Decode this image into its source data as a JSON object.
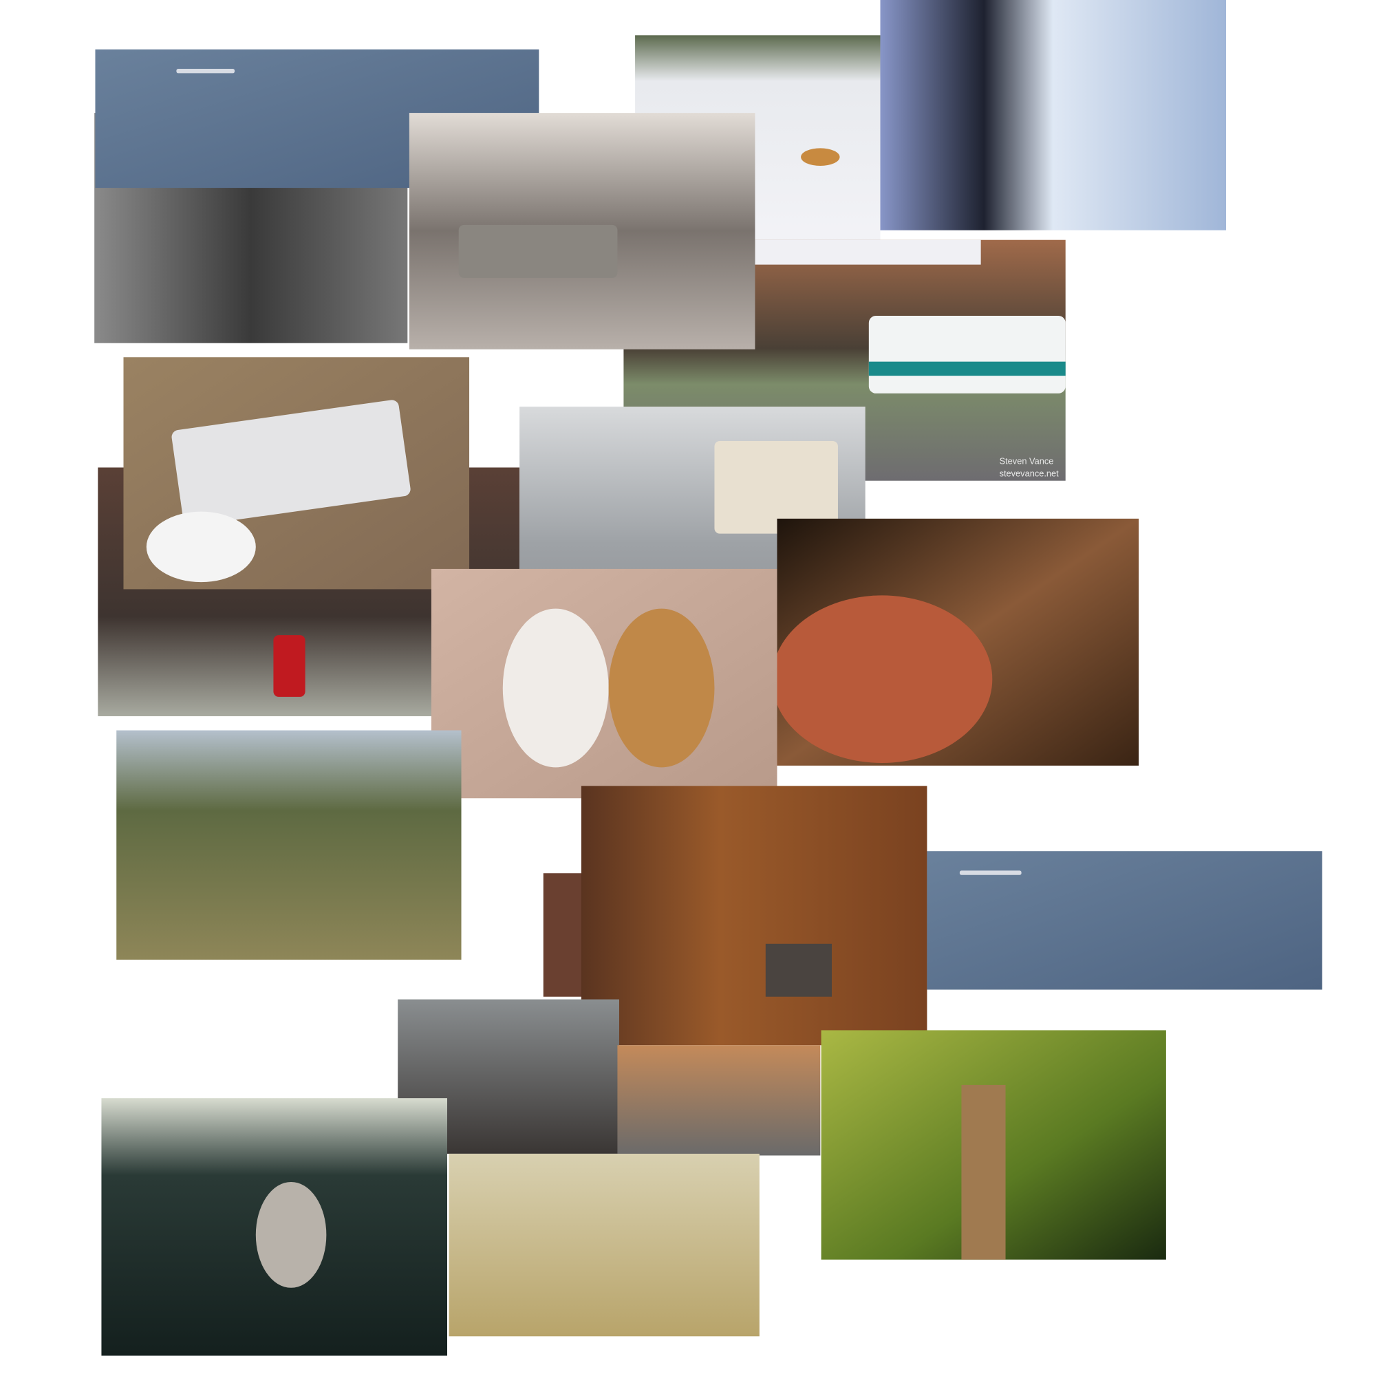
{
  "watermark": {
    "line1": "Steven Vance",
    "line2": "stevevance.net"
  }
}
